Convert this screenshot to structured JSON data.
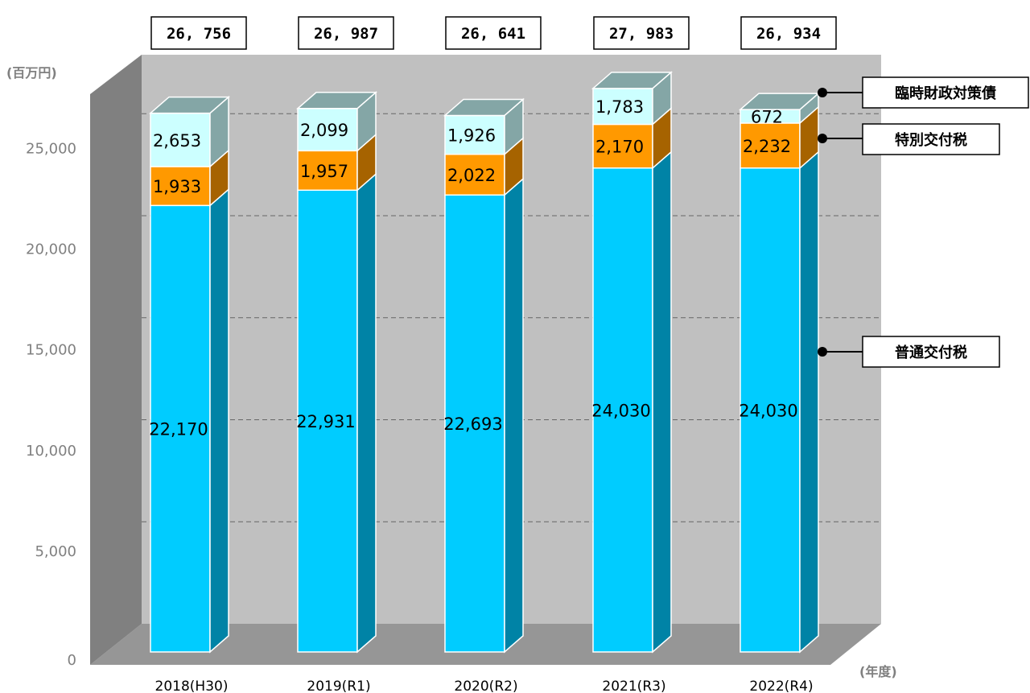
{
  "chart_data": {
    "type": "bar",
    "stacked": true,
    "three_d": true,
    "y_unit": "(百万円)",
    "x_unit": "(年度)",
    "ylim": [
      0,
      27500
    ],
    "yticks": [
      {
        "value": 0,
        "label": "0"
      },
      {
        "value": 5000,
        "label": "5,000"
      },
      {
        "value": 10000,
        "label": "10,000"
      },
      {
        "value": 15000,
        "label": "15,000"
      },
      {
        "value": 20000,
        "label": "20,000"
      },
      {
        "value": 25000,
        "label": "25,000"
      }
    ],
    "grid": true,
    "categories": [
      "2018(H30)",
      "2019(R1)",
      "2020(R2)",
      "2021(R3)",
      "2022(R4)"
    ],
    "series": [
      {
        "name": "普通交付税",
        "values": [
          22170,
          22931,
          22693,
          24030,
          24030
        ],
        "labels": [
          "22,170",
          "22,931",
          "22,693",
          "24,030",
          "24,030"
        ],
        "color": "#00CCFF",
        "side_color": "#0083A6"
      },
      {
        "name": "特別交付税",
        "values": [
          1933,
          1957,
          2022,
          2170,
          2232
        ],
        "labels": [
          "1,933",
          "1,957",
          "2,022",
          "2,170",
          "2,232"
        ],
        "color": "#FF9900",
        "side_color": "#A66300"
      },
      {
        "name": "臨時財政対策債",
        "values": [
          2653,
          2099,
          1926,
          1783,
          672
        ],
        "labels": [
          "2,653",
          "2,099",
          "1,926",
          "1,783",
          "672"
        ],
        "color": "#CCFFFF",
        "side_color": "#84A6A6"
      }
    ],
    "totals": [
      "26, 756",
      "26, 987",
      "26, 641",
      "27, 983",
      "26, 934"
    ],
    "legend": {
      "placement": "right",
      "items": [
        "臨時財政対策債",
        "特別交付税",
        "普通交付税"
      ]
    },
    "colors": {
      "wall": "#C0C0C0",
      "floor": "#969696",
      "side_wall": "#808080",
      "grid": "#666666"
    }
  }
}
